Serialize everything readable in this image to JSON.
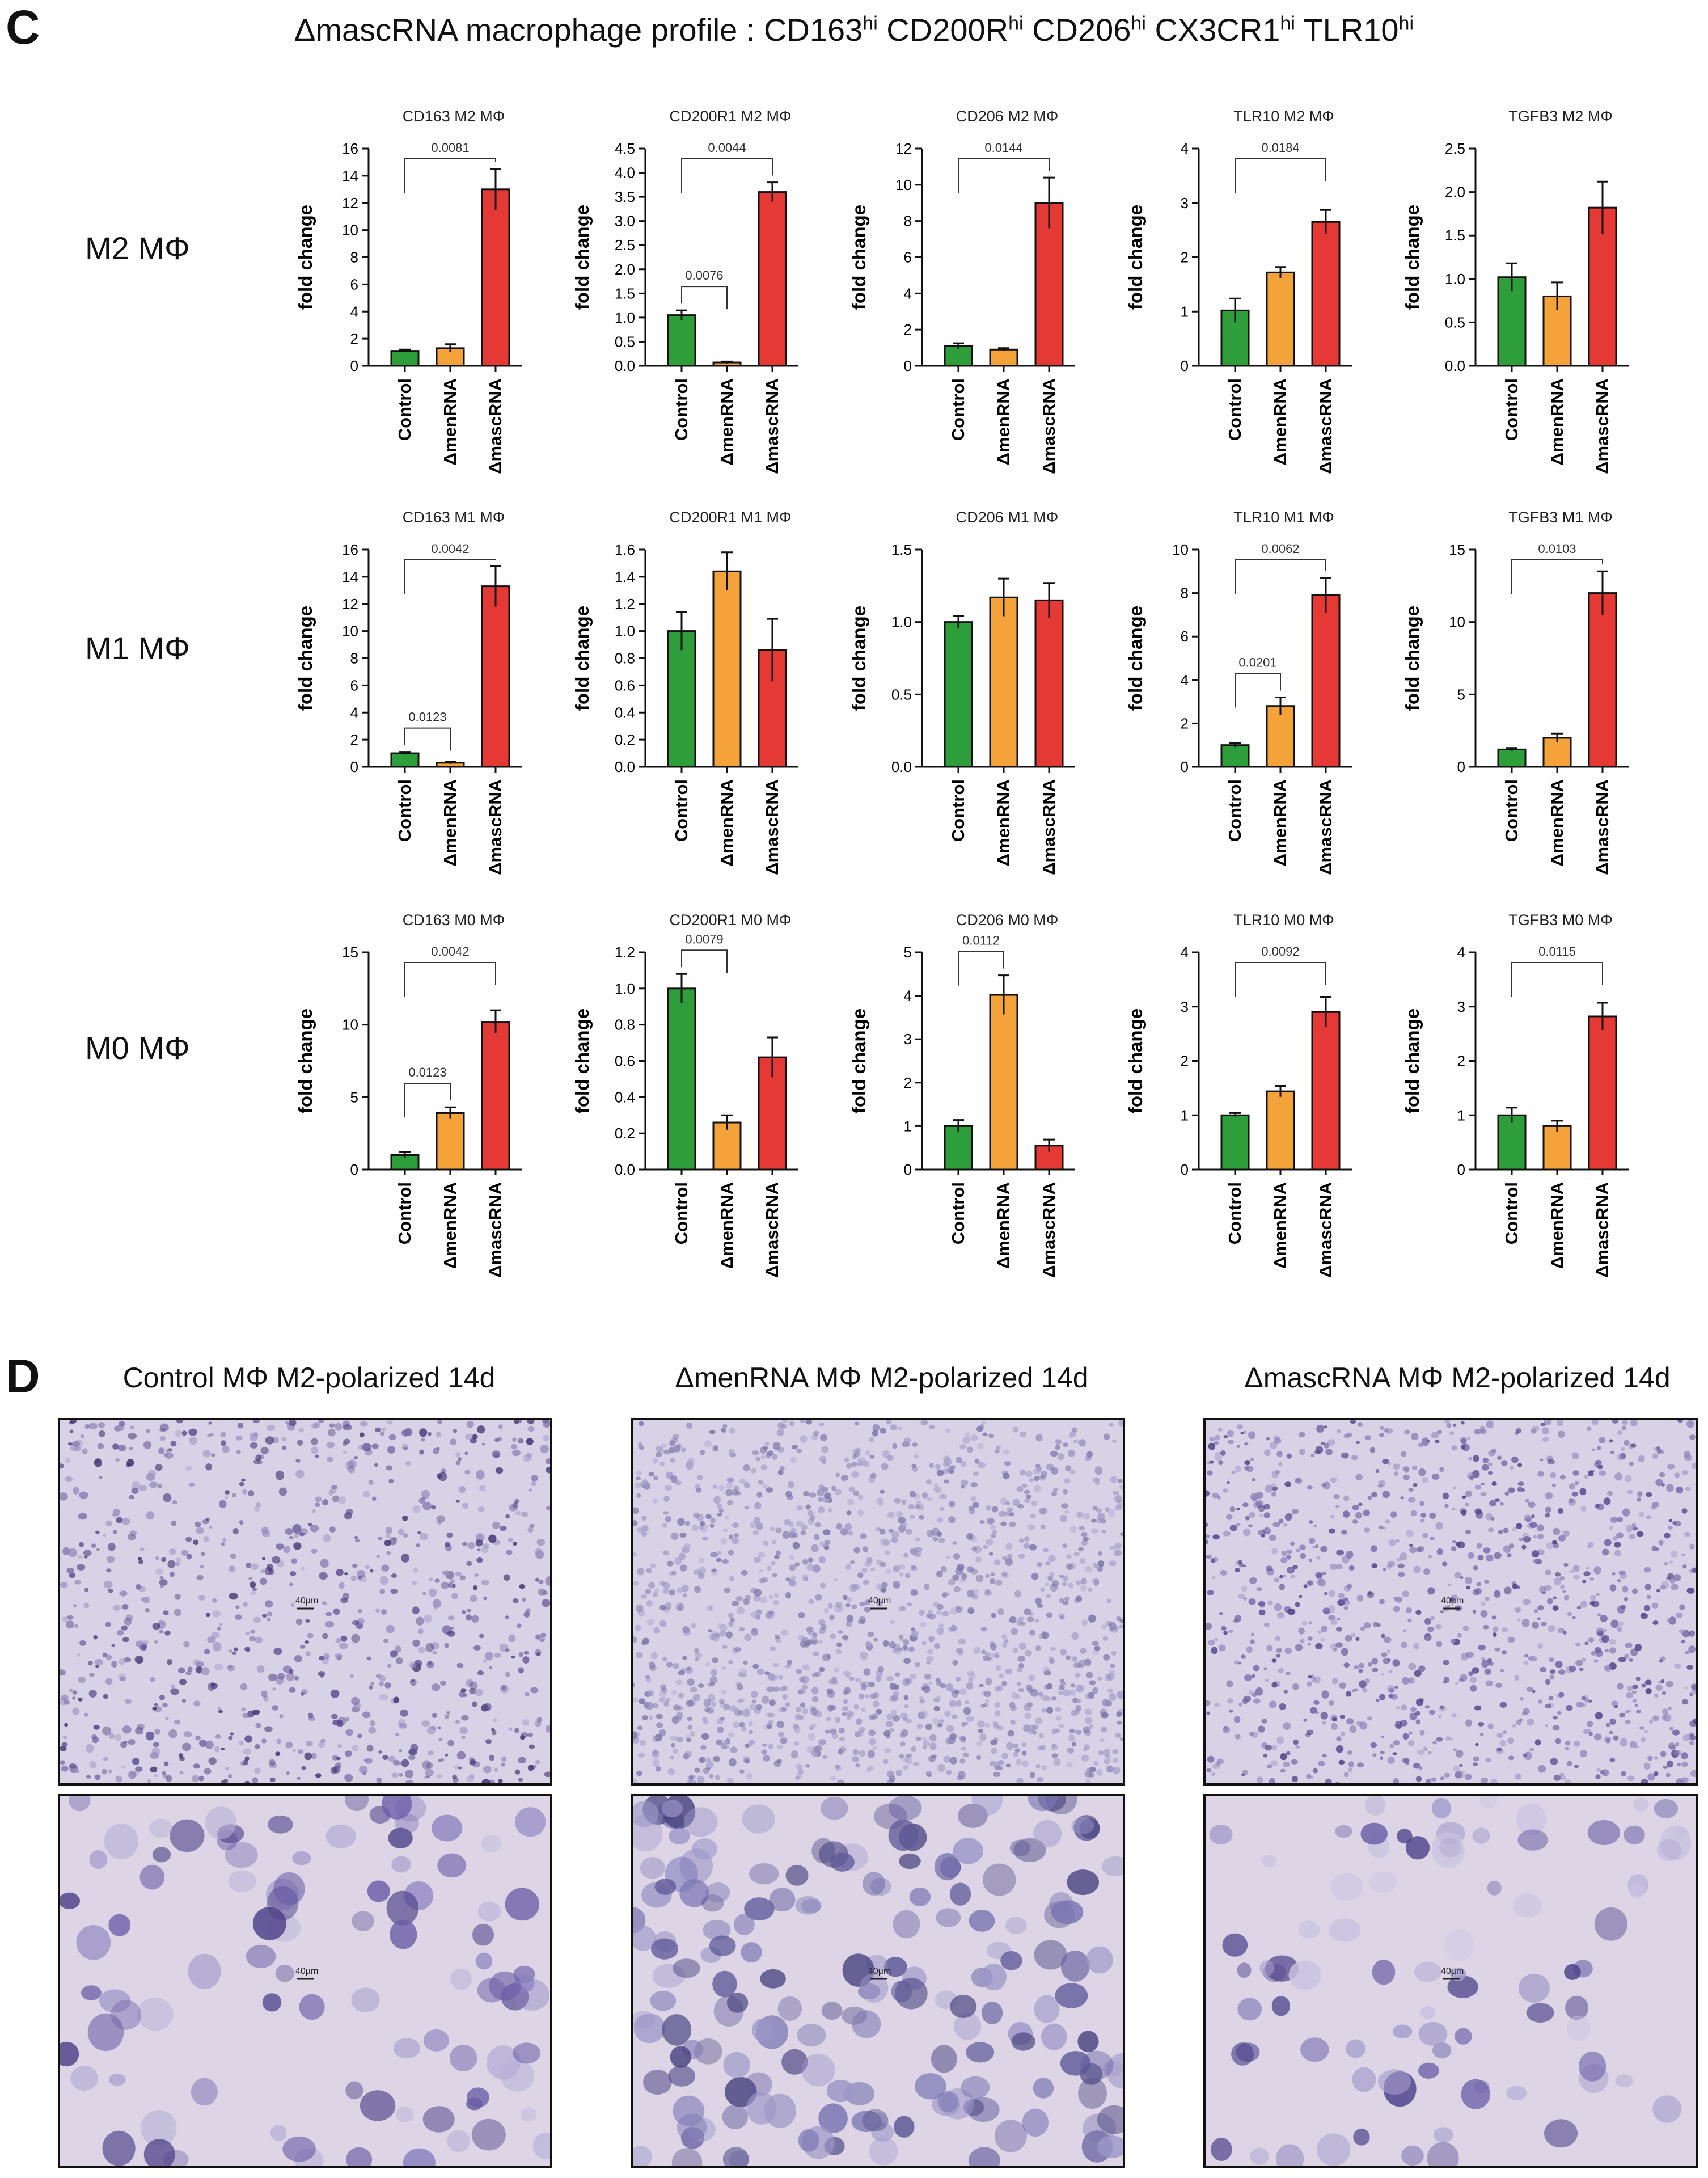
{
  "panel_letters": {
    "c": "C",
    "d": "D"
  },
  "title": {
    "prefix": "ΔmascRNA macrophage profile : ",
    "markers": [
      {
        "name": "CD163",
        "sup": "hi"
      },
      {
        "name": "CD200R",
        "sup": "hi"
      },
      {
        "name": "CD206",
        "sup": "hi"
      },
      {
        "name": "CX3CR1",
        "sup": "hi"
      },
      {
        "name": "TLR10",
        "sup": "hi"
      }
    ]
  },
  "row_labels": [
    "M2 MΦ",
    "M1 MΦ",
    "M0 MΦ"
  ],
  "colors": {
    "control": "#2e9e3a",
    "menrna": "#f3a33a",
    "mascrna": "#e53935"
  },
  "chart_data": [
    {
      "type": "bar",
      "title": "CD163 M2 MΦ",
      "ylabel": "fold change",
      "categories": [
        "Control",
        "ΔmenRNA",
        "ΔmascRNA"
      ],
      "values": [
        1.1,
        1.3,
        13.0
      ],
      "errors": [
        0.1,
        0.3,
        1.5
      ],
      "ylim": [
        0,
        16
      ],
      "yticks": [
        "0",
        "2",
        "4",
        "6",
        "8",
        "10",
        "12",
        "14",
        "16"
      ],
      "pvalues": [
        {
          "from": 0,
          "to": 2,
          "label": "0.0081"
        }
      ]
    },
    {
      "type": "bar",
      "title": "CD200R1 M2 MΦ",
      "ylabel": "fold change",
      "categories": [
        "Control",
        "ΔmenRNA",
        "ΔmascRNA"
      ],
      "values": [
        1.05,
        0.07,
        3.6
      ],
      "errors": [
        0.1,
        0.02,
        0.2
      ],
      "ylim": [
        0,
        4.5
      ],
      "yticks": [
        "0.0",
        "0.5",
        "1.0",
        "1.5",
        "2.0",
        "2.5",
        "3.0",
        "3.5",
        "4.0",
        "4.5"
      ],
      "pvalues": [
        {
          "from": 0,
          "to": 1,
          "label": "0.0076"
        },
        {
          "from": 0,
          "to": 2,
          "label": "0.0044"
        }
      ]
    },
    {
      "type": "bar",
      "title": "CD206 M2 MΦ",
      "ylabel": "fold change",
      "categories": [
        "Control",
        "ΔmenRNA",
        "ΔmascRNA"
      ],
      "values": [
        1.1,
        0.9,
        9.0
      ],
      "errors": [
        0.15,
        0.08,
        1.4
      ],
      "ylim": [
        0,
        12
      ],
      "yticks": [
        "0",
        "2",
        "4",
        "6",
        "8",
        "10",
        "12"
      ],
      "pvalues": [
        {
          "from": 0,
          "to": 2,
          "label": "0.0144"
        }
      ]
    },
    {
      "type": "bar",
      "title": "TLR10 M2 MΦ",
      "ylabel": "fold change",
      "categories": [
        "Control",
        "ΔmenRNA",
        "ΔmascRNA"
      ],
      "values": [
        1.02,
        1.72,
        2.65
      ],
      "errors": [
        0.22,
        0.1,
        0.22
      ],
      "ylim": [
        0,
        4
      ],
      "yticks": [
        "0",
        "1",
        "2",
        "3",
        "4"
      ],
      "pvalues": [
        {
          "from": 0,
          "to": 2,
          "label": "0.0184"
        }
      ]
    },
    {
      "type": "bar",
      "title": "TGFB3 M2 MΦ",
      "ylabel": "fold change",
      "categories": [
        "Control",
        "ΔmenRNA",
        "ΔmascRNA"
      ],
      "values": [
        1.02,
        0.8,
        1.82
      ],
      "errors": [
        0.16,
        0.16,
        0.3
      ],
      "ylim": [
        0,
        2.5
      ],
      "yticks": [
        "0.0",
        "0.5",
        "1.0",
        "1.5",
        "2.0",
        "2.5"
      ],
      "pvalues": []
    },
    {
      "type": "bar",
      "title": "CD163 M1 MΦ",
      "ylabel": "fold change",
      "categories": [
        "Control",
        "ΔmenRNA",
        "ΔmascRNA"
      ],
      "values": [
        1.0,
        0.3,
        13.3
      ],
      "errors": [
        0.1,
        0.08,
        1.5
      ],
      "ylim": [
        0,
        16
      ],
      "yticks": [
        "0",
        "2",
        "4",
        "6",
        "8",
        "10",
        "12",
        "14",
        "16"
      ],
      "pvalues": [
        {
          "from": 0,
          "to": 1,
          "label": "0.0123"
        },
        {
          "from": 0,
          "to": 2,
          "label": "0.0042"
        }
      ]
    },
    {
      "type": "bar",
      "title": "CD200R1 M1 MΦ",
      "ylabel": "fold change",
      "categories": [
        "Control",
        "ΔmenRNA",
        "ΔmascRNA"
      ],
      "values": [
        1.0,
        1.44,
        0.86
      ],
      "errors": [
        0.14,
        0.14,
        0.23
      ],
      "ylim": [
        0,
        1.6
      ],
      "yticks": [
        "0.0",
        "0.2",
        "0.4",
        "0.6",
        "0.8",
        "1.0",
        "1.2",
        "1.4",
        "1.6"
      ],
      "pvalues": []
    },
    {
      "type": "bar",
      "title": "CD206 M1 MΦ",
      "ylabel": "fold change",
      "categories": [
        "Control",
        "ΔmenRNA",
        "ΔmascRNA"
      ],
      "values": [
        1.0,
        1.17,
        1.15
      ],
      "errors": [
        0.04,
        0.13,
        0.12
      ],
      "ylim": [
        0,
        1.5
      ],
      "yticks": [
        "0.0",
        "0.5",
        "1.0",
        "1.5"
      ],
      "pvalues": []
    },
    {
      "type": "bar",
      "title": "TLR10 M1 MΦ",
      "ylabel": "fold change",
      "categories": [
        "Control",
        "ΔmenRNA",
        "ΔmascRNA"
      ],
      "values": [
        1.0,
        2.8,
        7.9
      ],
      "errors": [
        0.1,
        0.4,
        0.8
      ],
      "ylim": [
        0,
        10
      ],
      "yticks": [
        "0",
        "2",
        "4",
        "6",
        "8",
        "10"
      ],
      "pvalues": [
        {
          "from": 0,
          "to": 1,
          "label": "0.0201"
        },
        {
          "from": 0,
          "to": 2,
          "label": "0.0062"
        }
      ]
    },
    {
      "type": "bar",
      "title": "TGFB3 M1 MΦ",
      "ylabel": "fold change",
      "categories": [
        "Control",
        "ΔmenRNA",
        "ΔmascRNA"
      ],
      "values": [
        1.2,
        2.0,
        12.0
      ],
      "errors": [
        0.1,
        0.3,
        1.5
      ],
      "ylim": [
        0,
        15
      ],
      "yticks": [
        "0",
        "5",
        "10",
        "15"
      ],
      "pvalues": [
        {
          "from": 0,
          "to": 2,
          "label": "0.0103"
        }
      ]
    },
    {
      "type": "bar",
      "title": "CD163 M0 MΦ",
      "ylabel": "fold change",
      "categories": [
        "Control",
        "ΔmenRNA",
        "ΔmascRNA"
      ],
      "values": [
        1.0,
        3.9,
        10.2
      ],
      "errors": [
        0.2,
        0.4,
        0.8
      ],
      "ylim": [
        0,
        15
      ],
      "yticks": [
        "0",
        "5",
        "10",
        "15"
      ],
      "pvalues": [
        {
          "from": 0,
          "to": 1,
          "label": "0.0123"
        },
        {
          "from": 0,
          "to": 2,
          "label": "0.0042"
        }
      ]
    },
    {
      "type": "bar",
      "title": "CD200R1 M0 MΦ",
      "ylabel": "fold change",
      "categories": [
        "Control",
        "ΔmenRNA",
        "ΔmascRNA"
      ],
      "values": [
        1.0,
        0.26,
        0.62
      ],
      "errors": [
        0.08,
        0.04,
        0.11
      ],
      "ylim": [
        0,
        1.2
      ],
      "yticks": [
        "0.0",
        "0.2",
        "0.4",
        "0.6",
        "0.8",
        "1.0",
        "1.2"
      ],
      "pvalues": [
        {
          "from": 0,
          "to": 1,
          "label": "0.0079"
        }
      ]
    },
    {
      "type": "bar",
      "title": "CD206 M0 MΦ",
      "ylabel": "fold change",
      "categories": [
        "Control",
        "ΔmenRNA",
        "ΔmascRNA"
      ],
      "values": [
        1.0,
        4.02,
        0.55
      ],
      "errors": [
        0.14,
        0.45,
        0.14
      ],
      "ylim": [
        0,
        5
      ],
      "yticks": [
        "0",
        "1",
        "2",
        "3",
        "4",
        "5"
      ],
      "pvalues": [
        {
          "from": 0,
          "to": 1,
          "label": "0.0112"
        }
      ]
    },
    {
      "type": "bar",
      "title": "TLR10 M0 MΦ",
      "ylabel": "fold change",
      "categories": [
        "Control",
        "ΔmenRNA",
        "ΔmascRNA"
      ],
      "values": [
        1.0,
        1.44,
        2.9
      ],
      "errors": [
        0.04,
        0.1,
        0.28
      ],
      "ylim": [
        0,
        4
      ],
      "yticks": [
        "0",
        "1",
        "2",
        "3",
        "4"
      ],
      "pvalues": [
        {
          "from": 0,
          "to": 2,
          "label": "0.0092"
        }
      ]
    },
    {
      "type": "bar",
      "title": "TGFB3 M0 MΦ",
      "ylabel": "fold change",
      "categories": [
        "Control",
        "ΔmenRNA",
        "ΔmascRNA"
      ],
      "values": [
        1.0,
        0.8,
        2.82
      ],
      "errors": [
        0.14,
        0.1,
        0.25
      ],
      "ylim": [
        0,
        4
      ],
      "yticks": [
        "0",
        "1",
        "2",
        "3",
        "4"
      ],
      "pvalues": [
        {
          "from": 0,
          "to": 2,
          "label": "0.0115"
        }
      ]
    }
  ],
  "images": {
    "titles": [
      "Control MΦ M2-polarized 14d",
      "ΔmenRNA MΦ M2-polarized 14d",
      "ΔmascRNA MΦ M2-polarized 14d"
    ],
    "scale_label": "40µm"
  }
}
